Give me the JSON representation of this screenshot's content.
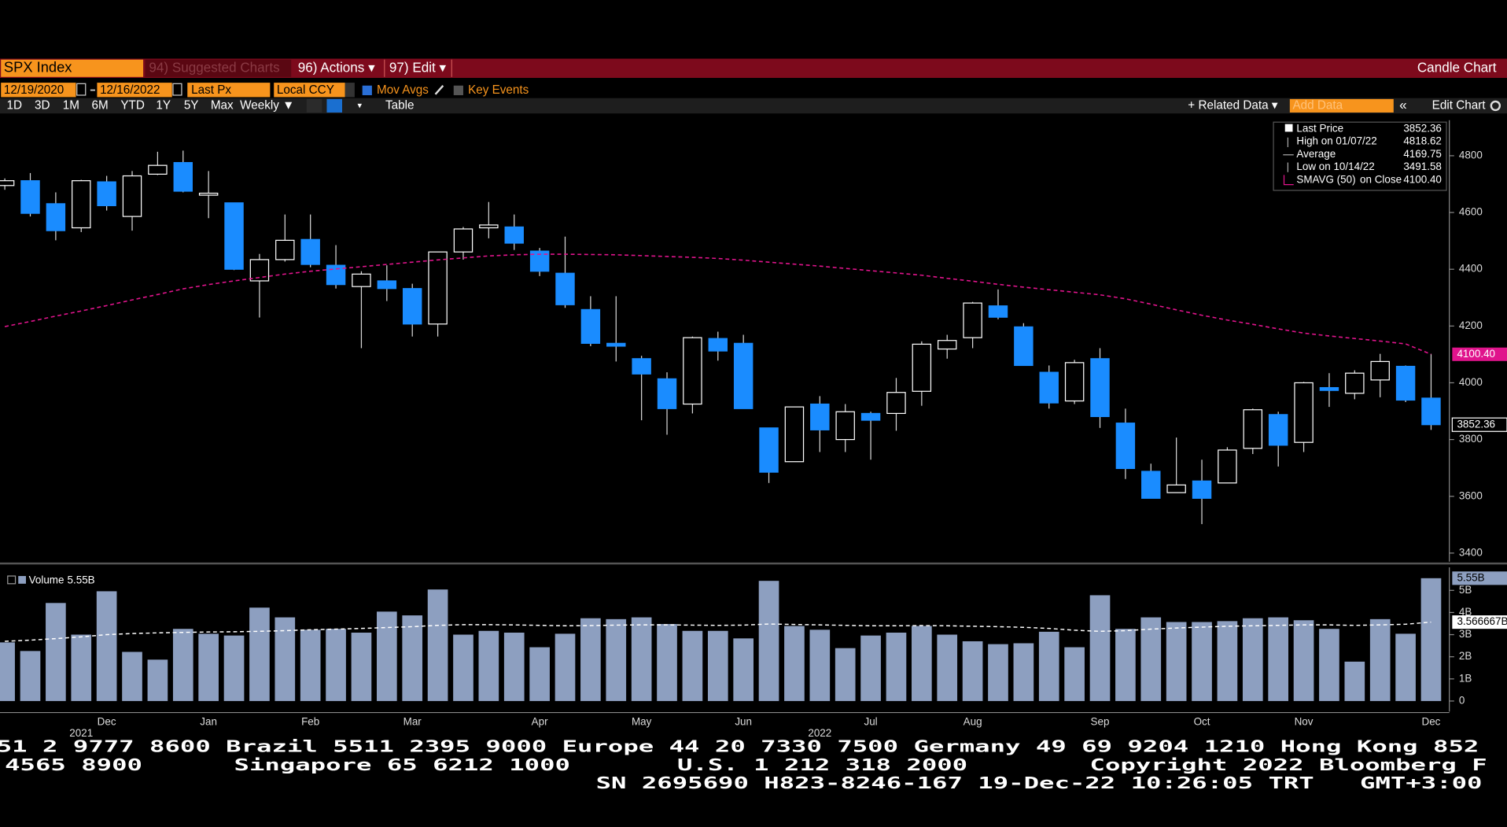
{
  "ui": {
    "toolbar": {
      "ticker": "SPX Index",
      "suggested": "94) Suggested Charts",
      "actions": "96) Actions ▾",
      "edit": "97) Edit ▾",
      "chart_kind": "Candle Chart"
    },
    "controls": {
      "start": "12/19/2020",
      "end": "12/16/2022",
      "field": "Last Px",
      "currency": "Local CCY",
      "mov_avgs": "Mov Avgs",
      "key_events": "Key Events"
    },
    "periods": [
      "1D",
      "3D",
      "1M",
      "6M",
      "YTD",
      "1Y",
      "5Y",
      "Max",
      "Weekly ▼"
    ],
    "table": "Table",
    "related": "+ Related Data ▾",
    "add_data": "Add Data",
    "edit_chart": "Edit Chart",
    "footer": [
      "51 2 9777 8600 Brazil 5511 2395 9000 Europe 44 20 7330 7500 Germany 49 69 9204 1210 Hong Kong 852",
      "4565 8900      Singapore 65 6212 1000       U.S. 1 212 318 2000        Copyright 2022 Bloomberg F",
      "SN 2695690 H823-8246-167 19-Dec-22 10:26:05 TRT   GMT+3:00"
    ]
  },
  "chart_data": [
    {
      "type": "candlestick",
      "categories": [
        null,
        null,
        null,
        null,
        "Dec",
        null,
        null,
        null,
        "Jan",
        null,
        null,
        null,
        "Feb",
        null,
        null,
        null,
        "Mar",
        null,
        null,
        null,
        null,
        "Apr",
        null,
        null,
        null,
        "May",
        null,
        null,
        null,
        "Jun",
        null,
        null,
        null,
        null,
        "Jul",
        null,
        null,
        null,
        "Aug",
        null,
        null,
        null,
        null,
        "Sep",
        null,
        null,
        null,
        "Oct",
        null,
        null,
        null,
        "Nov",
        null,
        null,
        null,
        null,
        "Dec"
      ],
      "year_labels": [
        null,
        null,
        null,
        "2021",
        null,
        null,
        null,
        null,
        null,
        null,
        null,
        null,
        null,
        null,
        null,
        null,
        null,
        null,
        null,
        null,
        null,
        null,
        null,
        null,
        null,
        null,
        null,
        null,
        null,
        null,
        null,
        null,
        "2022",
        null,
        null,
        null,
        null,
        null,
        null,
        null,
        null,
        null,
        null,
        null,
        null,
        null,
        null,
        null,
        null,
        null,
        null,
        null,
        null,
        null,
        null,
        null,
        null
      ],
      "open": [
        4695,
        4712,
        4631,
        4546,
        4708,
        4586,
        4735,
        4776,
        4661,
        4634,
        4359,
        4434,
        4505,
        4414,
        4339,
        4359,
        4332,
        4207,
        4461,
        4546,
        4549,
        4464,
        4386,
        4258,
        4139,
        4085,
        4014,
        3925,
        4156,
        4139,
        3841,
        3722,
        3925,
        3800,
        3892,
        3892,
        3970,
        4119,
        4159,
        4271,
        4197,
        4037,
        3936,
        4085,
        3858,
        3688,
        3613,
        3654,
        3647,
        3769,
        3888,
        3790,
        3983,
        3963,
        4010,
        4058,
        3946
      ],
      "high": [
        4720,
        4739,
        4671,
        4715,
        4729,
        4746,
        4814,
        4818,
        4746,
        4634,
        4454,
        4593,
        4593,
        4485,
        4393,
        4414,
        4349,
        4461,
        4549,
        4637,
        4593,
        4475,
        4515,
        4305,
        4305,
        4095,
        4037,
        4163,
        4180,
        4169,
        3841,
        3915,
        3953,
        3925,
        3898,
        4017,
        4146,
        4169,
        4285,
        4329,
        4210,
        4061,
        4081,
        4122,
        3909,
        3715,
        3807,
        3729,
        3773,
        3909,
        3898,
        4003,
        4034,
        4044,
        4102,
        4061,
        4102
      ],
      "low": [
        4680,
        4586,
        4502,
        4531,
        4607,
        4536,
        4732,
        4671,
        4580,
        4397,
        4230,
        4427,
        4407,
        4332,
        4122,
        4288,
        4163,
        4163,
        4434,
        4509,
        4468,
        4376,
        4264,
        4129,
        4075,
        3868,
        3817,
        3892,
        4078,
        3909,
        3647,
        3722,
        3756,
        3756,
        3729,
        3831,
        3919,
        4085,
        4122,
        4224,
        4061,
        3909,
        3925,
        3841,
        3661,
        3593,
        3613,
        3502,
        3647,
        3749,
        3705,
        3756,
        3915,
        3942,
        3949,
        3932,
        3834
      ],
      "close": [
        4712,
        4597,
        4536,
        4712,
        4624,
        4729,
        4766,
        4675,
        4668,
        4400,
        4434,
        4502,
        4417,
        4346,
        4383,
        4332,
        4207,
        4461,
        4542,
        4556,
        4492,
        4393,
        4275,
        4139,
        4129,
        4031,
        3909,
        4159,
        4112,
        3909,
        3685,
        3915,
        3834,
        3898,
        3868,
        3966,
        4136,
        4149,
        4281,
        4231,
        4061,
        3929,
        4071,
        3881,
        3698,
        3593,
        3640,
        3593,
        3763,
        3905,
        3780,
        4000,
        3973,
        4034,
        4075,
        3939,
        3852.36
      ],
      "up_color": "#000000",
      "up_edge": "#ffffff",
      "down_color": "#1a8cff",
      "wick_color": "#d8d8d8",
      "ylim": [
        3370,
        4915
      ],
      "yticks": [
        3400,
        3600,
        3800,
        4000,
        4200,
        4400,
        4600,
        4800
      ],
      "moving_average": {
        "name": "SMAVG (50)",
        "color": "#e0148c",
        "values": [
          4198,
          4216,
          4235,
          4253,
          4272,
          4292,
          4311,
          4331,
          4346,
          4359,
          4371,
          4383,
          4393,
          4401,
          4409,
          4417,
          4425,
          4433,
          4440,
          4447,
          4451,
          4453,
          4453,
          4452,
          4451,
          4448,
          4445,
          4442,
          4438,
          4432,
          4425,
          4418,
          4411,
          4403,
          4395,
          4387,
          4379,
          4368,
          4358,
          4347,
          4337,
          4328,
          4319,
          4310,
          4296,
          4277,
          4257,
          4238,
          4221,
          4206,
          4190,
          4175,
          4165,
          4156,
          4147,
          4137,
          4100.4
        ]
      },
      "legend_rows": [
        {
          "label": "Last Price",
          "value": 3852.36
        },
        {
          "label": "High on 01/07/22",
          "value": 4818.62
        },
        {
          "label": "Average",
          "value": 4169.75
        },
        {
          "label": "Low on 10/14/22",
          "value": 3491.58
        },
        {
          "label": "SMAVG (50)",
          "note": "on Close",
          "value": {
            "value": 4100.4,
            "label": "4100.40"
          }
        }
      ]
    },
    {
      "type": "bar",
      "name": "Volume",
      "legend_value": {
        "value": 5.55,
        "label": "5.55B"
      },
      "color": "#8d9fc0",
      "values": [
        2.65,
        2.26,
        4.43,
        3.0,
        4.96,
        2.22,
        1.87,
        3.26,
        3.04,
        2.96,
        4.22,
        3.78,
        3.22,
        3.26,
        3.09,
        4.04,
        3.87,
        5.04,
        3.0,
        3.17,
        3.09,
        2.43,
        3.04,
        3.74,
        3.7,
        3.78,
        3.48,
        3.17,
        3.17,
        2.83,
        5.43,
        3.39,
        3.22,
        2.39,
        2.96,
        3.09,
        3.39,
        3.0,
        2.7,
        2.57,
        2.61,
        3.13,
        2.43,
        4.78,
        3.26,
        3.78,
        3.57,
        3.57,
        3.61,
        3.74,
        3.78,
        3.65,
        3.26,
        1.78,
        3.7,
        3.04,
        5.55
      ],
      "ylim": [
        0,
        6.04
      ],
      "yticks": [
        0,
        {
          "value": 1,
          "label": "1B"
        },
        {
          "value": 2,
          "label": "2B"
        },
        {
          "value": 3,
          "label": "3B"
        },
        {
          "value": 4,
          "label": "4B"
        },
        {
          "value": 5,
          "label": "5B"
        }
      ],
      "moving_average": {
        "color": "#ffffff",
        "values": [
          2.7,
          2.75,
          2.82,
          2.9,
          3.0,
          3.05,
          3.08,
          3.1,
          3.12,
          3.13,
          3.15,
          3.18,
          3.22,
          3.25,
          3.28,
          3.32,
          3.36,
          3.42,
          3.45,
          3.45,
          3.44,
          3.42,
          3.4,
          3.41,
          3.43,
          3.44,
          3.44,
          3.43,
          3.42,
          3.43,
          3.48,
          3.46,
          3.44,
          3.42,
          3.4,
          3.4,
          3.41,
          3.4,
          3.38,
          3.36,
          3.33,
          3.28,
          3.2,
          3.15,
          3.18,
          3.25,
          3.3,
          3.34,
          3.38,
          3.4,
          3.42,
          3.44,
          3.44,
          3.42,
          3.44,
          3.47,
          3.566667
        ],
        "last_label": {
          "value": 3.566667,
          "label": "3.566667B"
        }
      }
    }
  ]
}
